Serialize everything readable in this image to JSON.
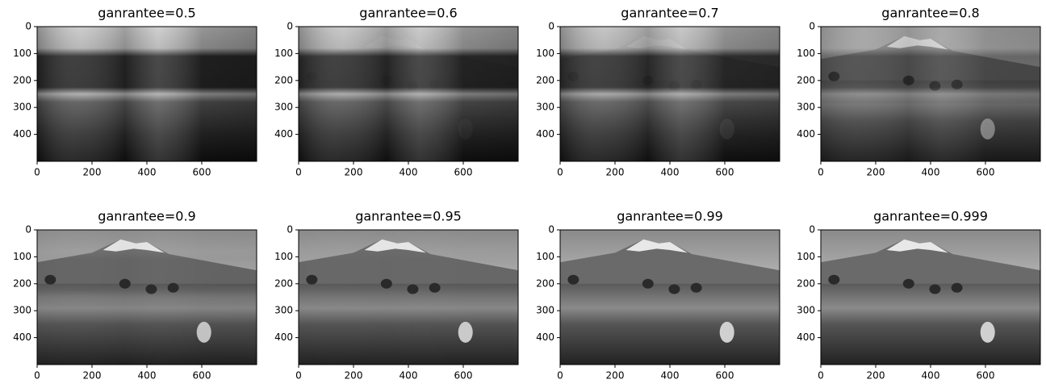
{
  "chart_data": [
    {
      "type": "image",
      "title": "ganrantee=0.5",
      "xlim": [
        0,
        800
      ],
      "ylim": [
        500,
        0
      ],
      "xticks": [
        0,
        200,
        400,
        600
      ],
      "yticks": [
        0,
        100,
        200,
        300,
        400
      ]
    },
    {
      "type": "image",
      "title": "ganrantee=0.6",
      "xlim": [
        0,
        800
      ],
      "ylim": [
        500,
        0
      ],
      "xticks": [
        0,
        200,
        400,
        600
      ],
      "yticks": [
        0,
        100,
        200,
        300,
        400
      ]
    },
    {
      "type": "image",
      "title": "ganrantee=0.7",
      "xlim": [
        0,
        800
      ],
      "ylim": [
        500,
        0
      ],
      "xticks": [
        0,
        200,
        400,
        600
      ],
      "yticks": [
        0,
        100,
        200,
        300,
        400
      ]
    },
    {
      "type": "image",
      "title": "ganrantee=0.8",
      "xlim": [
        0,
        800
      ],
      "ylim": [
        500,
        0
      ],
      "xticks": [
        0,
        200,
        400,
        600
      ],
      "yticks": [
        0,
        100,
        200,
        300,
        400
      ]
    },
    {
      "type": "image",
      "title": "ganrantee=0.9",
      "xlim": [
        0,
        800
      ],
      "ylim": [
        500,
        0
      ],
      "xticks": [
        0,
        200,
        400,
        600
      ],
      "yticks": [
        0,
        100,
        200,
        300,
        400
      ]
    },
    {
      "type": "image",
      "title": "ganrantee=0.95",
      "xlim": [
        0,
        800
      ],
      "ylim": [
        500,
        0
      ],
      "xticks": [
        0,
        200,
        400,
        600
      ],
      "yticks": [
        0,
        100,
        200,
        300,
        400
      ]
    },
    {
      "type": "image",
      "title": "ganrantee=0.99",
      "xlim": [
        0,
        800
      ],
      "ylim": [
        500,
        0
      ],
      "xticks": [
        0,
        200,
        400,
        600
      ],
      "yticks": [
        0,
        100,
        200,
        300,
        400
      ]
    },
    {
      "type": "image",
      "title": "ganrantee=0.999",
      "xlim": [
        0,
        800
      ],
      "ylim": [
        500,
        0
      ],
      "xticks": [
        0,
        200,
        400,
        600
      ],
      "yticks": [
        0,
        100,
        200,
        300,
        400
      ]
    }
  ]
}
